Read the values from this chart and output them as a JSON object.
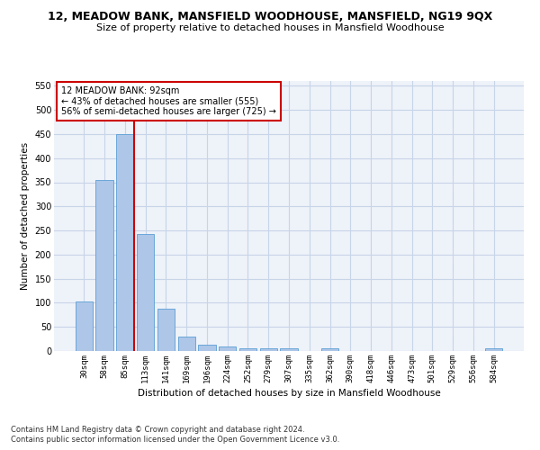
{
  "title": "12, MEADOW BANK, MANSFIELD WOODHOUSE, MANSFIELD, NG19 9QX",
  "subtitle": "Size of property relative to detached houses in Mansfield Woodhouse",
  "xlabel": "Distribution of detached houses by size in Mansfield Woodhouse",
  "ylabel": "Number of detached properties",
  "footnote1": "Contains HM Land Registry data © Crown copyright and database right 2024.",
  "footnote2": "Contains public sector information licensed under the Open Government Licence v3.0.",
  "categories": [
    "30sqm",
    "58sqm",
    "85sqm",
    "113sqm",
    "141sqm",
    "169sqm",
    "196sqm",
    "224sqm",
    "252sqm",
    "279sqm",
    "307sqm",
    "335sqm",
    "362sqm",
    "390sqm",
    "418sqm",
    "446sqm",
    "473sqm",
    "501sqm",
    "529sqm",
    "556sqm",
    "584sqm"
  ],
  "values": [
    103,
    355,
    450,
    243,
    88,
    30,
    13,
    9,
    5,
    5,
    5,
    0,
    5,
    0,
    0,
    0,
    0,
    0,
    0,
    0,
    5
  ],
  "bar_color": "#aec6e8",
  "bar_edge_color": "#5a9fd4",
  "highlight_line_color": "#cc0000",
  "annotation_line1": "12 MEADOW BANK: 92sqm",
  "annotation_line2": "← 43% of detached houses are smaller (555)",
  "annotation_line3": "56% of semi-detached houses are larger (725) →",
  "annotation_box_color": "#ffffff",
  "annotation_box_edge": "#cc0000",
  "ylim": [
    0,
    560
  ],
  "yticks": [
    0,
    50,
    100,
    150,
    200,
    250,
    300,
    350,
    400,
    450,
    500,
    550
  ],
  "bg_color": "#eef2f9",
  "grid_color": "#c8d4e8",
  "title_fontsize": 9,
  "subtitle_fontsize": 8,
  "footnote_fontsize": 6
}
